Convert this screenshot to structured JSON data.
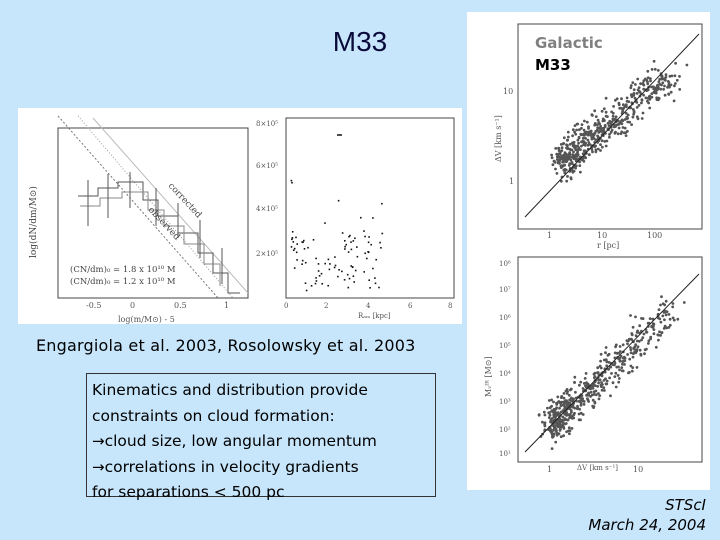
{
  "slide": {
    "title": "M33",
    "caption": "Engargiola et al. 2003, Rosolowsky et al. 2003",
    "bullets": [
      "Kinematics and distribution provide",
      "constraints on cloud formation:",
      "cloud size, low angular momentum",
      "correlations in velocity gradients",
      "for separations < 500 pc"
    ],
    "footer_org": "STScI",
    "footer_date": "March 24, 2004"
  },
  "figure_left": {
    "mass_function": {
      "ylabel": "log(dN/dm/M⊙)",
      "xlabel": "log(m/M⊙) - 5",
      "xticks": [
        "-0.5",
        "0",
        "0.5",
        "1"
      ],
      "curve_labels": [
        "corrected",
        "observed"
      ],
      "legend_lines": [
        "(CN/dm)₀ = 1.8 x 10¹⁰ M",
        "(CN/dm)₀ = 1.2 x 10¹⁰ M"
      ]
    },
    "scatter": {
      "yticks": [
        "8×10⁵",
        "6×10⁵",
        "4×10⁵",
        "2×10⁵"
      ],
      "xticks": [
        "0",
        "2",
        "4",
        "6",
        "8"
      ],
      "xlabel": "Rₐₘ [kpc]"
    }
  },
  "figure_right": {
    "legend": {
      "galactic": "Galactic",
      "m33": "M33"
    },
    "legend_colors": {
      "galactic": "#808080",
      "m33": "#000000"
    },
    "top": {
      "ylabel": "ΔV [km s⁻¹]",
      "xlabel": "r [pc]",
      "yticks": [
        "10",
        "1"
      ],
      "xticks": [
        "1",
        "10",
        "100"
      ]
    },
    "bottom": {
      "ylabel": "Mᵥᴵᴿ [M⊙]",
      "xlabel": "ΔV [km s⁻¹]",
      "yticks": [
        "10⁸",
        "10⁷",
        "10⁶",
        "10⁵",
        "10⁴",
        "10³",
        "10²",
        "10¹"
      ],
      "xticks": [
        "1",
        "10"
      ]
    }
  }
}
